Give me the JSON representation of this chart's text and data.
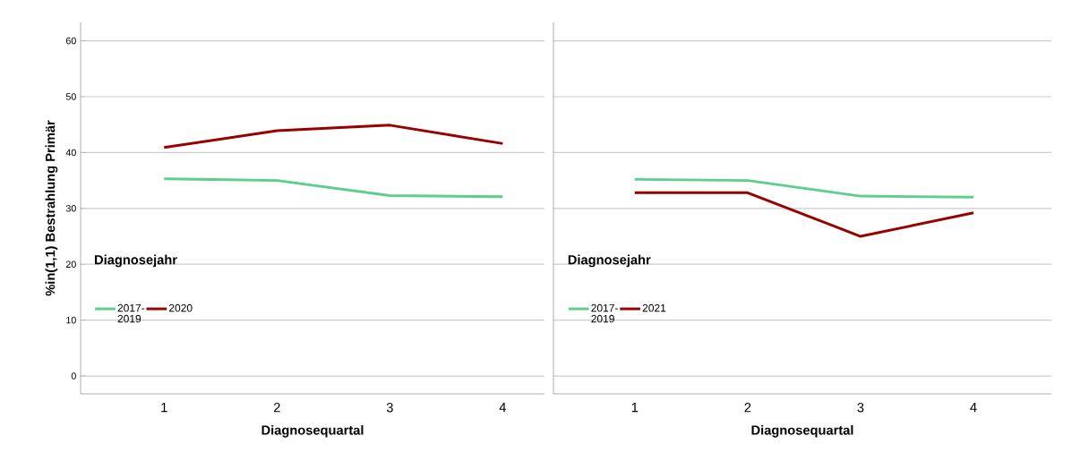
{
  "chart_data": [
    {
      "type": "line",
      "categories": [
        "1",
        "2",
        "3",
        "4"
      ],
      "xlabel": "Diagnosequartal",
      "ylabel": "%in(1,1) Bestrahlung Primär",
      "ylim": [
        -3.2,
        63.3
      ],
      "yticks": [
        0,
        10,
        20,
        30,
        40,
        50,
        60
      ],
      "grid": "y",
      "legend": "bottom left",
      "legend_title": "Diagnosejahr",
      "line_style": "solid",
      "series": [
        {
          "name": "2017-2019",
          "color": "#5ccf8a",
          "values": [
            35.3,
            35.0,
            32.3,
            32.1
          ]
        },
        {
          "name": "2020",
          "color": "#990000",
          "values": [
            40.9,
            43.9,
            44.9,
            41.6
          ]
        }
      ]
    },
    {
      "type": "line",
      "categories": [
        "1",
        "2",
        "3",
        "4"
      ],
      "xlabel": "Diagnosequartal",
      "ylim": [
        -3.2,
        63.3
      ],
      "yticks": [
        0,
        10,
        20,
        30,
        40,
        50,
        60
      ],
      "grid": "y",
      "legend": "bottom left",
      "legend_title": "Diagnosejahr",
      "line_style": "solid",
      "tick_labels": "x",
      "series": [
        {
          "name": "2017-2019",
          "color": "#5ccf8a",
          "values": [
            35.2,
            35.0,
            32.2,
            32.0
          ]
        },
        {
          "name": "2021",
          "color": "#990000",
          "values": [
            32.8,
            32.8,
            25.0,
            29.2
          ]
        }
      ]
    }
  ]
}
